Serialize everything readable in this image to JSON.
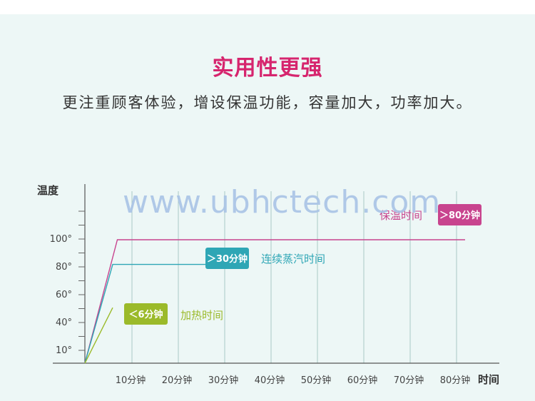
{
  "title": "实用性更强",
  "subtitle": "更注重顾客体验，增设保温功能，容量加大，功率加大。",
  "watermark": "www.ubhctech.com",
  "colors": {
    "title": "#d6256e",
    "panel_bg": "#edf7f6",
    "keep_warm": "#c8448e",
    "steam": "#2ea6b5",
    "heat": "#9bba2a",
    "grid": "#a9c9c6"
  },
  "chart_data": {
    "type": "line",
    "ylabel": "温度",
    "xlabel": "时间",
    "y_ticks": [
      "10°",
      "40°",
      "60°",
      "80°",
      "100°"
    ],
    "x_ticks": [
      "10分钟",
      "20分钟",
      "30分钟",
      "40分钟",
      "50分钟",
      "60分钟",
      "70分钟",
      "80分钟"
    ],
    "series": [
      {
        "name": "保温时间",
        "badge": "＞80分钟",
        "color": "#c8448e",
        "points": [
          [
            0,
            0
          ],
          [
            0.7,
            100
          ],
          [
            8.2,
            100
          ]
        ]
      },
      {
        "name": "连续蒸汽时间",
        "badge": "＞30分钟",
        "color": "#2ea6b5",
        "points": [
          [
            0,
            0
          ],
          [
            0.6,
            80
          ],
          [
            3.0,
            80
          ]
        ]
      },
      {
        "name": "加热时间",
        "badge": "＜6分钟",
        "color": "#9bba2a",
        "points": [
          [
            0,
            0
          ],
          [
            0.6,
            45
          ]
        ]
      }
    ]
  }
}
